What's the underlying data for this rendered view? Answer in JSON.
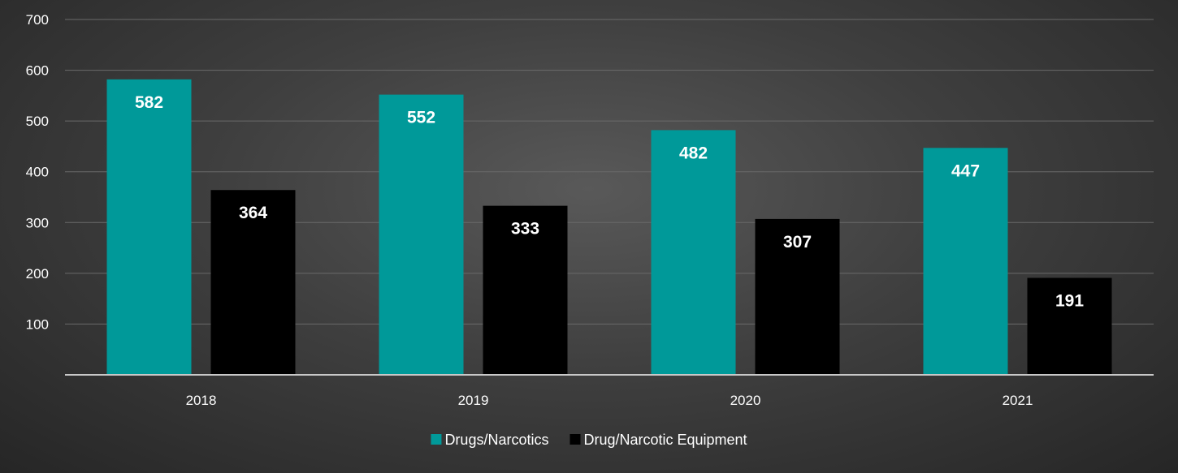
{
  "chart_data": {
    "type": "bar",
    "categories": [
      "2018",
      "2019",
      "2020",
      "2021"
    ],
    "series": [
      {
        "name": "Drugs/Narcotics",
        "values": [
          582,
          552,
          482,
          447
        ],
        "color": "#009999"
      },
      {
        "name": "Drug/Narcotic Equipment",
        "values": [
          364,
          333,
          307,
          191
        ],
        "color": "#000000"
      }
    ],
    "ylim": [
      0,
      700
    ],
    "yticks": [
      100,
      200,
      300,
      400,
      500,
      600,
      700
    ],
    "grid": true,
    "legend_position": "bottom",
    "data_labels": true
  }
}
